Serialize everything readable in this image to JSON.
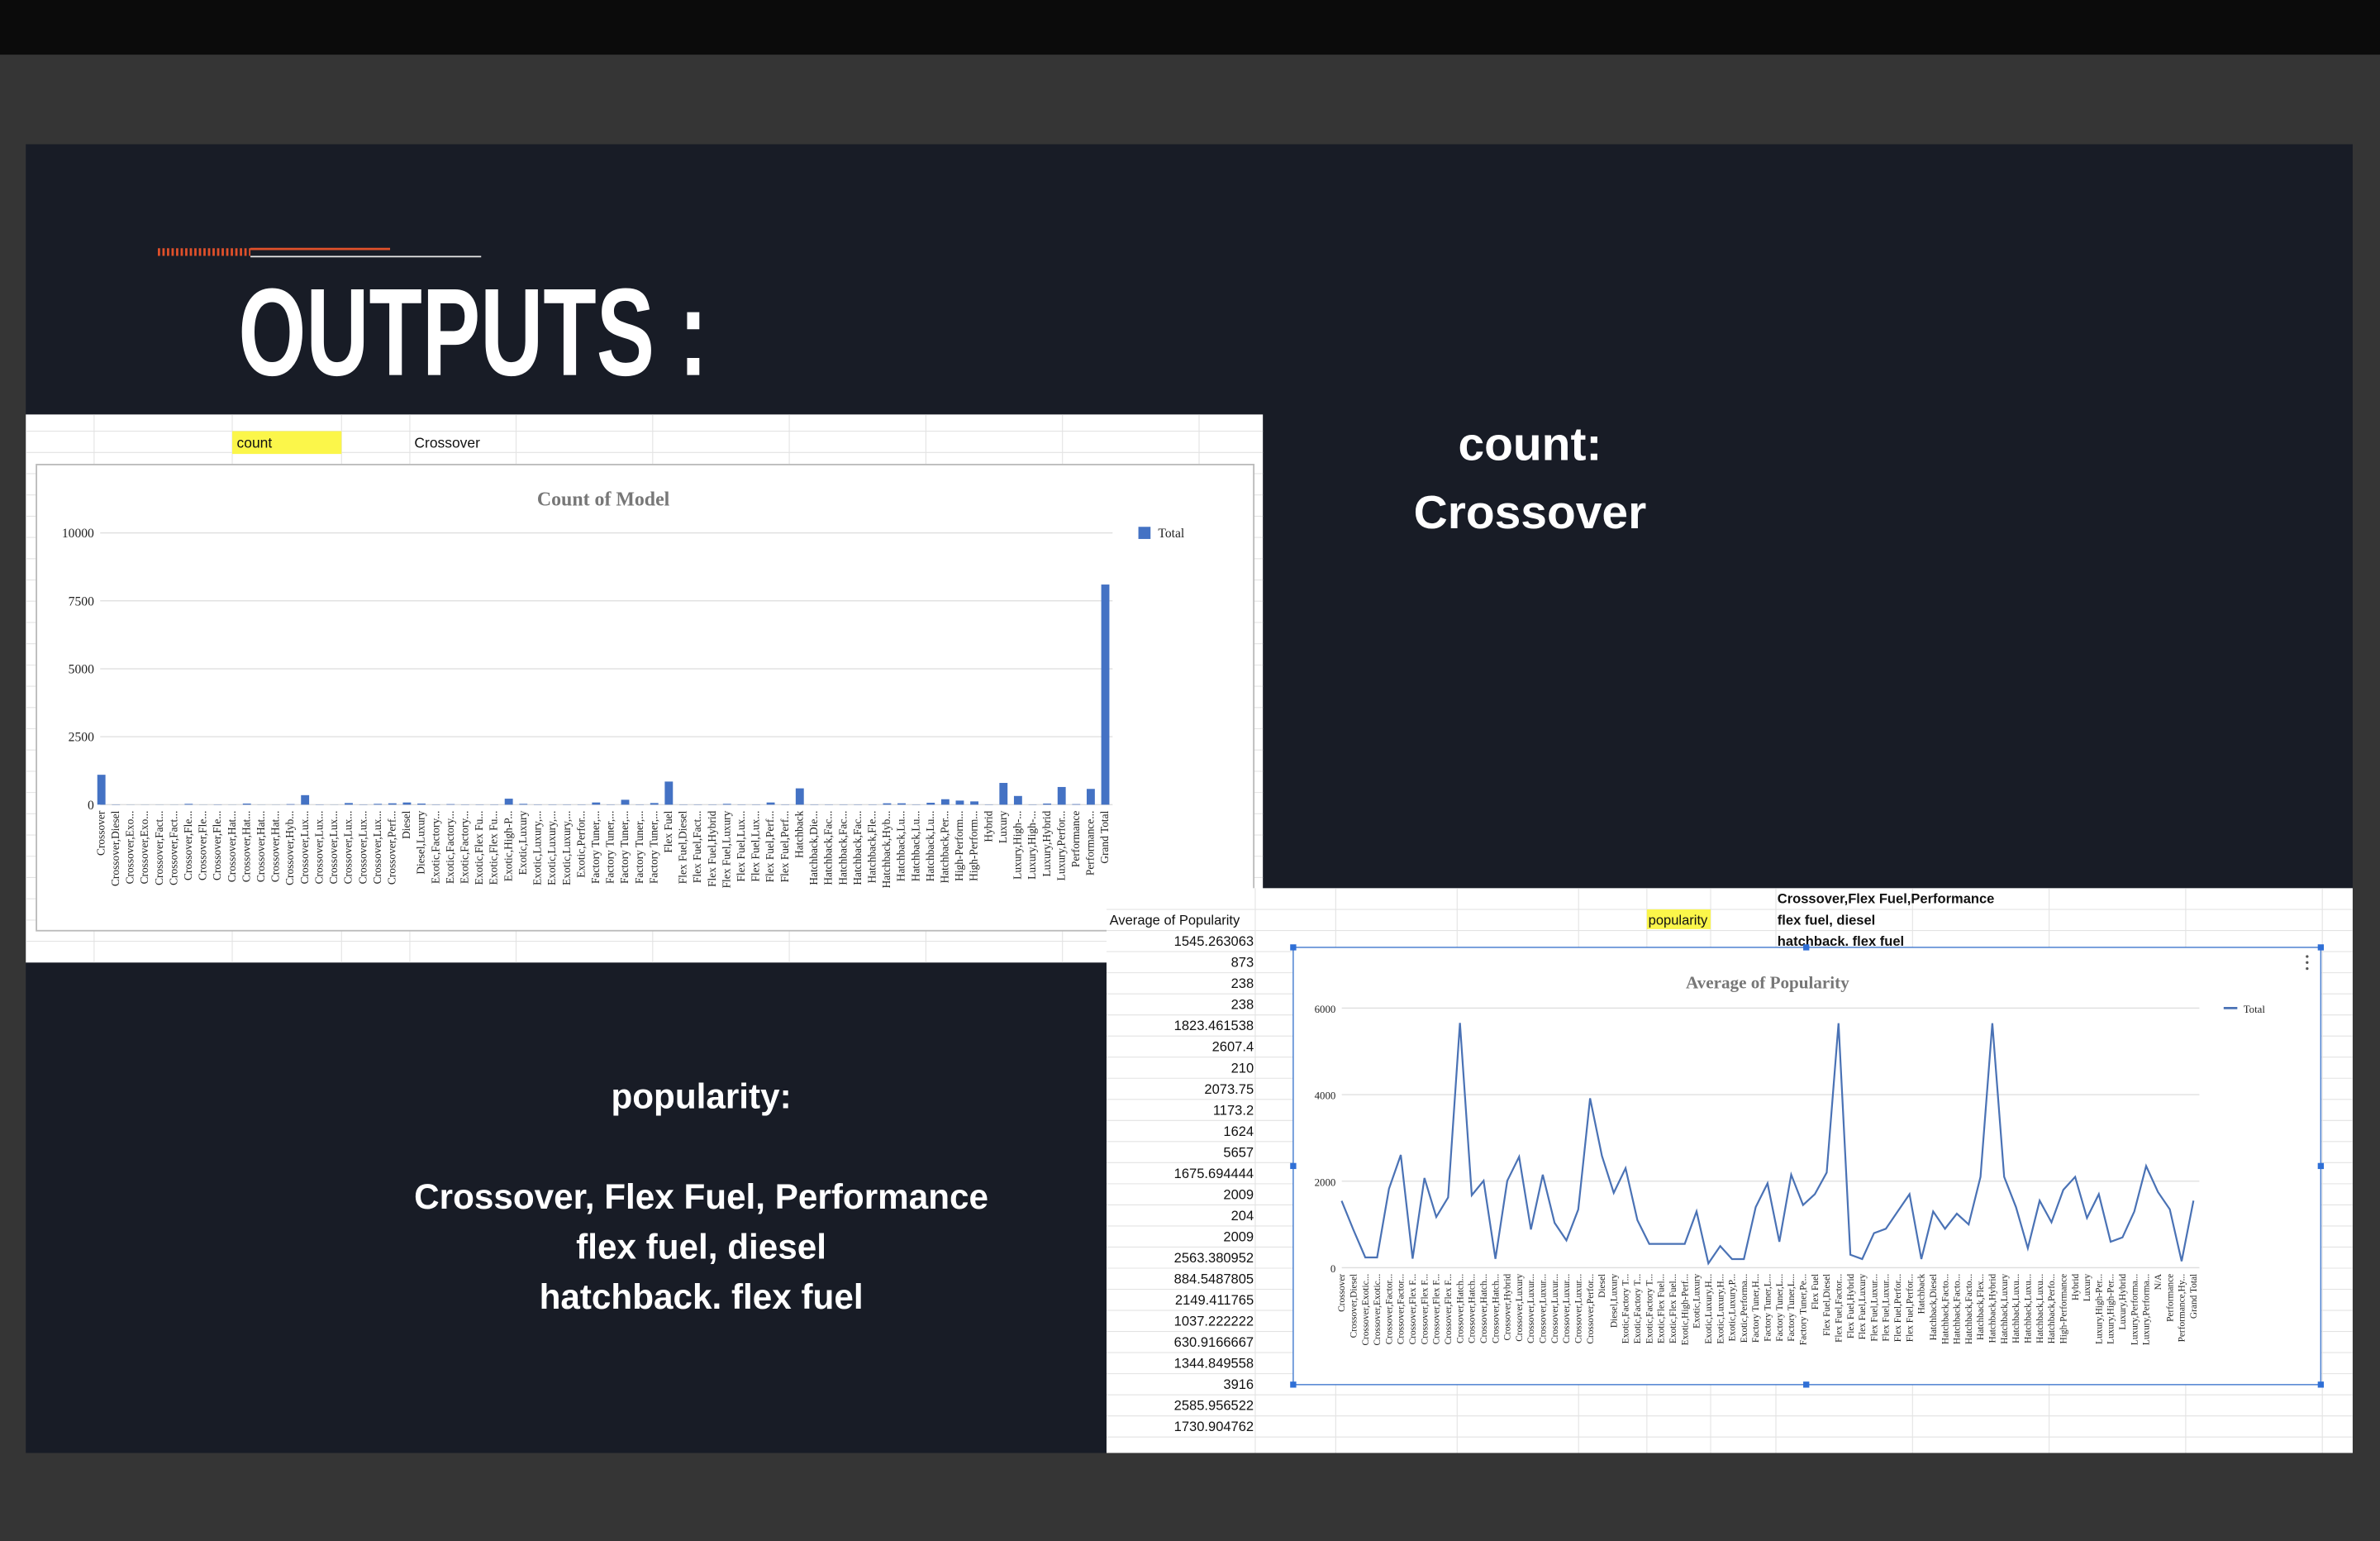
{
  "slide": {
    "heading": "OUTPUTS :",
    "count_label": "count:",
    "count_value": "Crossover",
    "popularity_label": "popularity:",
    "popularity_lines": [
      "Crossover, Flex Fuel, Performance",
      "flex fuel, diesel",
      "hatchback. flex fuel"
    ]
  },
  "sheet_top": {
    "cells": [
      "count",
      "Crossover"
    ]
  },
  "sheet_bottom": {
    "header": "Average of Popularity",
    "cells": [
      "popularity",
      "Crossover,Flex Fuel,Performance",
      "flex fuel, diesel",
      "hatchback. flex fuel"
    ]
  },
  "chart_data": [
    {
      "type": "bar",
      "title": "Count of Model",
      "color": "#4472c4",
      "legend": "right",
      "series": [
        {
          "name": "Total",
          "color": "#4472c4",
          "values": [
            1100,
            10,
            5,
            5,
            5,
            5,
            30,
            5,
            10,
            5,
            40,
            5,
            5,
            20,
            350,
            10,
            5,
            60,
            10,
            30,
            50,
            80,
            40,
            10,
            20,
            10,
            10,
            10,
            220,
            30,
            10,
            10,
            10,
            10,
            80,
            10,
            180,
            10,
            60,
            850,
            10,
            10,
            10,
            30,
            10,
            10,
            80,
            10,
            600,
            10,
            10,
            10,
            10,
            10,
            50,
            50,
            10,
            70,
            200,
            150,
            120,
            10,
            800,
            320,
            10,
            40,
            650,
            20,
            580,
            8100
          ]
        }
      ],
      "categories": [
        "Crossover",
        "Crossover,Diesel",
        "Crossover,Exo...",
        "Crossover,Exo...",
        "Crossover,Fact...",
        "Crossover,Fact...",
        "Crossover,Fle...",
        "Crossover,Fle...",
        "Crossover,Fle...",
        "Crossover,Hat...",
        "Crossover,Hat...",
        "Crossover,Hat...",
        "Crossover,Hat...",
        "Crossover,Hyb...",
        "Crossover,Lux...",
        "Crossover,Lux...",
        "Crossover,Lux...",
        "Crossover,Lux...",
        "Crossover,Lux...",
        "Crossover,Lux...",
        "Crossover,Perf...",
        "Diesel",
        "Diesel,Luxury",
        "Exotic,Factory...",
        "Exotic,Factory...",
        "Exotic,Factory...",
        "Exotic,Flex Fu...",
        "Exotic,Flex Fu...",
        "Exotic,High-P...",
        "Exotic,Luxury",
        "Exotic,Luxury,...",
        "Exotic,Luxury,...",
        "Exotic,Luxury,...",
        "Exotic,Perfor...",
        "Factory Tuner,...",
        "Factory Tuner,...",
        "Factory Tuner,...",
        "Factory Tuner,...",
        "Factory Tuner,...",
        "Flex Fuel",
        "Flex Fuel,Diesel",
        "Flex Fuel,Fact...",
        "Flex Fuel,Hybrid",
        "Flex Fuel,Luxury",
        "Flex Fuel,Lux...",
        "Flex Fuel,Lux...",
        "Flex Fuel,Perf...",
        "Flex Fuel,Perf...",
        "Hatchback",
        "Hatchback,Die...",
        "Hatchback,Fac...",
        "Hatchback,Fac...",
        "Hatchback,Fac...",
        "Hatchback,Fle...",
        "Hatchback,Hyb...",
        "Hatchback,Lu...",
        "Hatchback,Lu...",
        "Hatchback,Lu...",
        "Hatchback,Per...",
        "High-Perform...",
        "High-Perform...",
        "Hybrid",
        "Luxury",
        "Luxury,High-...",
        "Luxury,High-...",
        "Luxury,Hybrid",
        "Luxury,Perfor...",
        "Performance",
        "Performance...",
        "Grand Total"
      ],
      "ylim": [
        0,
        10000
      ],
      "yticks": [
        0,
        2500,
        5000,
        7500,
        10000
      ],
      "grid": true
    },
    {
      "type": "line",
      "title": "Average of Popularity",
      "legend": "right",
      "series": [
        {
          "name": "Total",
          "color": "#4a72b5",
          "values": [
            1545.263063,
            873,
            238,
            238,
            1823.461538,
            2607.4,
            210,
            2073.75,
            1173.2,
            1624,
            5657,
            1675.694444,
            2009,
            204,
            2009,
            2563.380952,
            884.5487805,
            2149.411765,
            1037.222222,
            630.9166667,
            1344.849558,
            3916,
            2585.956522,
            1730.904762,
            2300,
            1100,
            550,
            550,
            550,
            550,
            1300,
            100,
            500,
            200,
            200,
            1400,
            1950,
            600,
            2150,
            1450,
            1700,
            2200,
            5650,
            300,
            200,
            800,
            900,
            1300,
            1700,
            200,
            1300,
            900,
            1250,
            1000,
            2100,
            5650,
            2100,
            1400,
            450,
            1550,
            1050,
            1800,
            2100,
            1150,
            1700,
            600,
            700,
            1300,
            2350,
            1750,
            1350,
            150,
            1550
          ]
        }
      ],
      "categories": [
        "Crossover",
        "Crossover,Diesel",
        "Crossover,Exotic...",
        "Crossover,Exotic...",
        "Crossover,Factor...",
        "Crossover,Factor...",
        "Crossover,Flex F...",
        "Crossover,Flex F...",
        "Crossover,Flex F...",
        "Crossover,Flex F...",
        "Crossover,Hatch...",
        "Crossover,Hatch...",
        "Crossover,Hatch...",
        "Crossover,Hatch...",
        "Crossover,Hybrid",
        "Crossover,Luxury",
        "Crossover,Luxur...",
        "Crossover,Luxur...",
        "Crossover,Luxur...",
        "Crossover,Luxur...",
        "Crossover,Luxur...",
        "Crossover,Perfor...",
        "Diesel",
        "Diesel,Luxury",
        "Exotic,Factory T...",
        "Exotic,Factory T...",
        "Exotic,Factory T...",
        "Exotic,Flex Fuel...",
        "Exotic,Flex Fuel...",
        "Exotic,High-Perf...",
        "Exotic,Luxury",
        "Exotic,Luxury,H...",
        "Exotic,Luxury,H...",
        "Exotic,Luxury,P...",
        "Exotic,Performa...",
        "Factory Tuner,H...",
        "Factory Tuner,L...",
        "Factory Tuner,L...",
        "Factory Tuner,L...",
        "Factory Tuner,Pe...",
        "Flex Fuel",
        "Flex Fuel,Diesel",
        "Flex Fuel,Factor...",
        "Flex Fuel,Hybrid",
        "Flex Fuel,Luxury",
        "Flex Fuel,Luxur...",
        "Flex Fuel,Luxur...",
        "Flex Fuel,Perfor...",
        "Flex Fuel,Perfor...",
        "Hatchback",
        "Hatchback,Diesel",
        "Hatchback,Facto...",
        "Hatchback,Facto...",
        "Hatchback,Facto...",
        "Hatchback,Flex...",
        "Hatchback,Hybrid",
        "Hatchback,Luxury",
        "Hatchback,Luxu...",
        "Hatchback,Luxu...",
        "Hatchback,Luxu...",
        "Hatchback,Perfo...",
        "High-Performance",
        "Hybrid",
        "Luxury",
        "Luxury,High-Per...",
        "Luxury,High-Per...",
        "Luxury,Hybrid",
        "Luxury,Performa...",
        "Luxury,Performa...",
        "N/A",
        "Performance",
        "Performance,Hy...",
        "Grand Total"
      ],
      "ylim": [
        0,
        6000
      ],
      "yticks": [
        0,
        2000,
        4000,
        6000
      ],
      "grid": true
    }
  ]
}
